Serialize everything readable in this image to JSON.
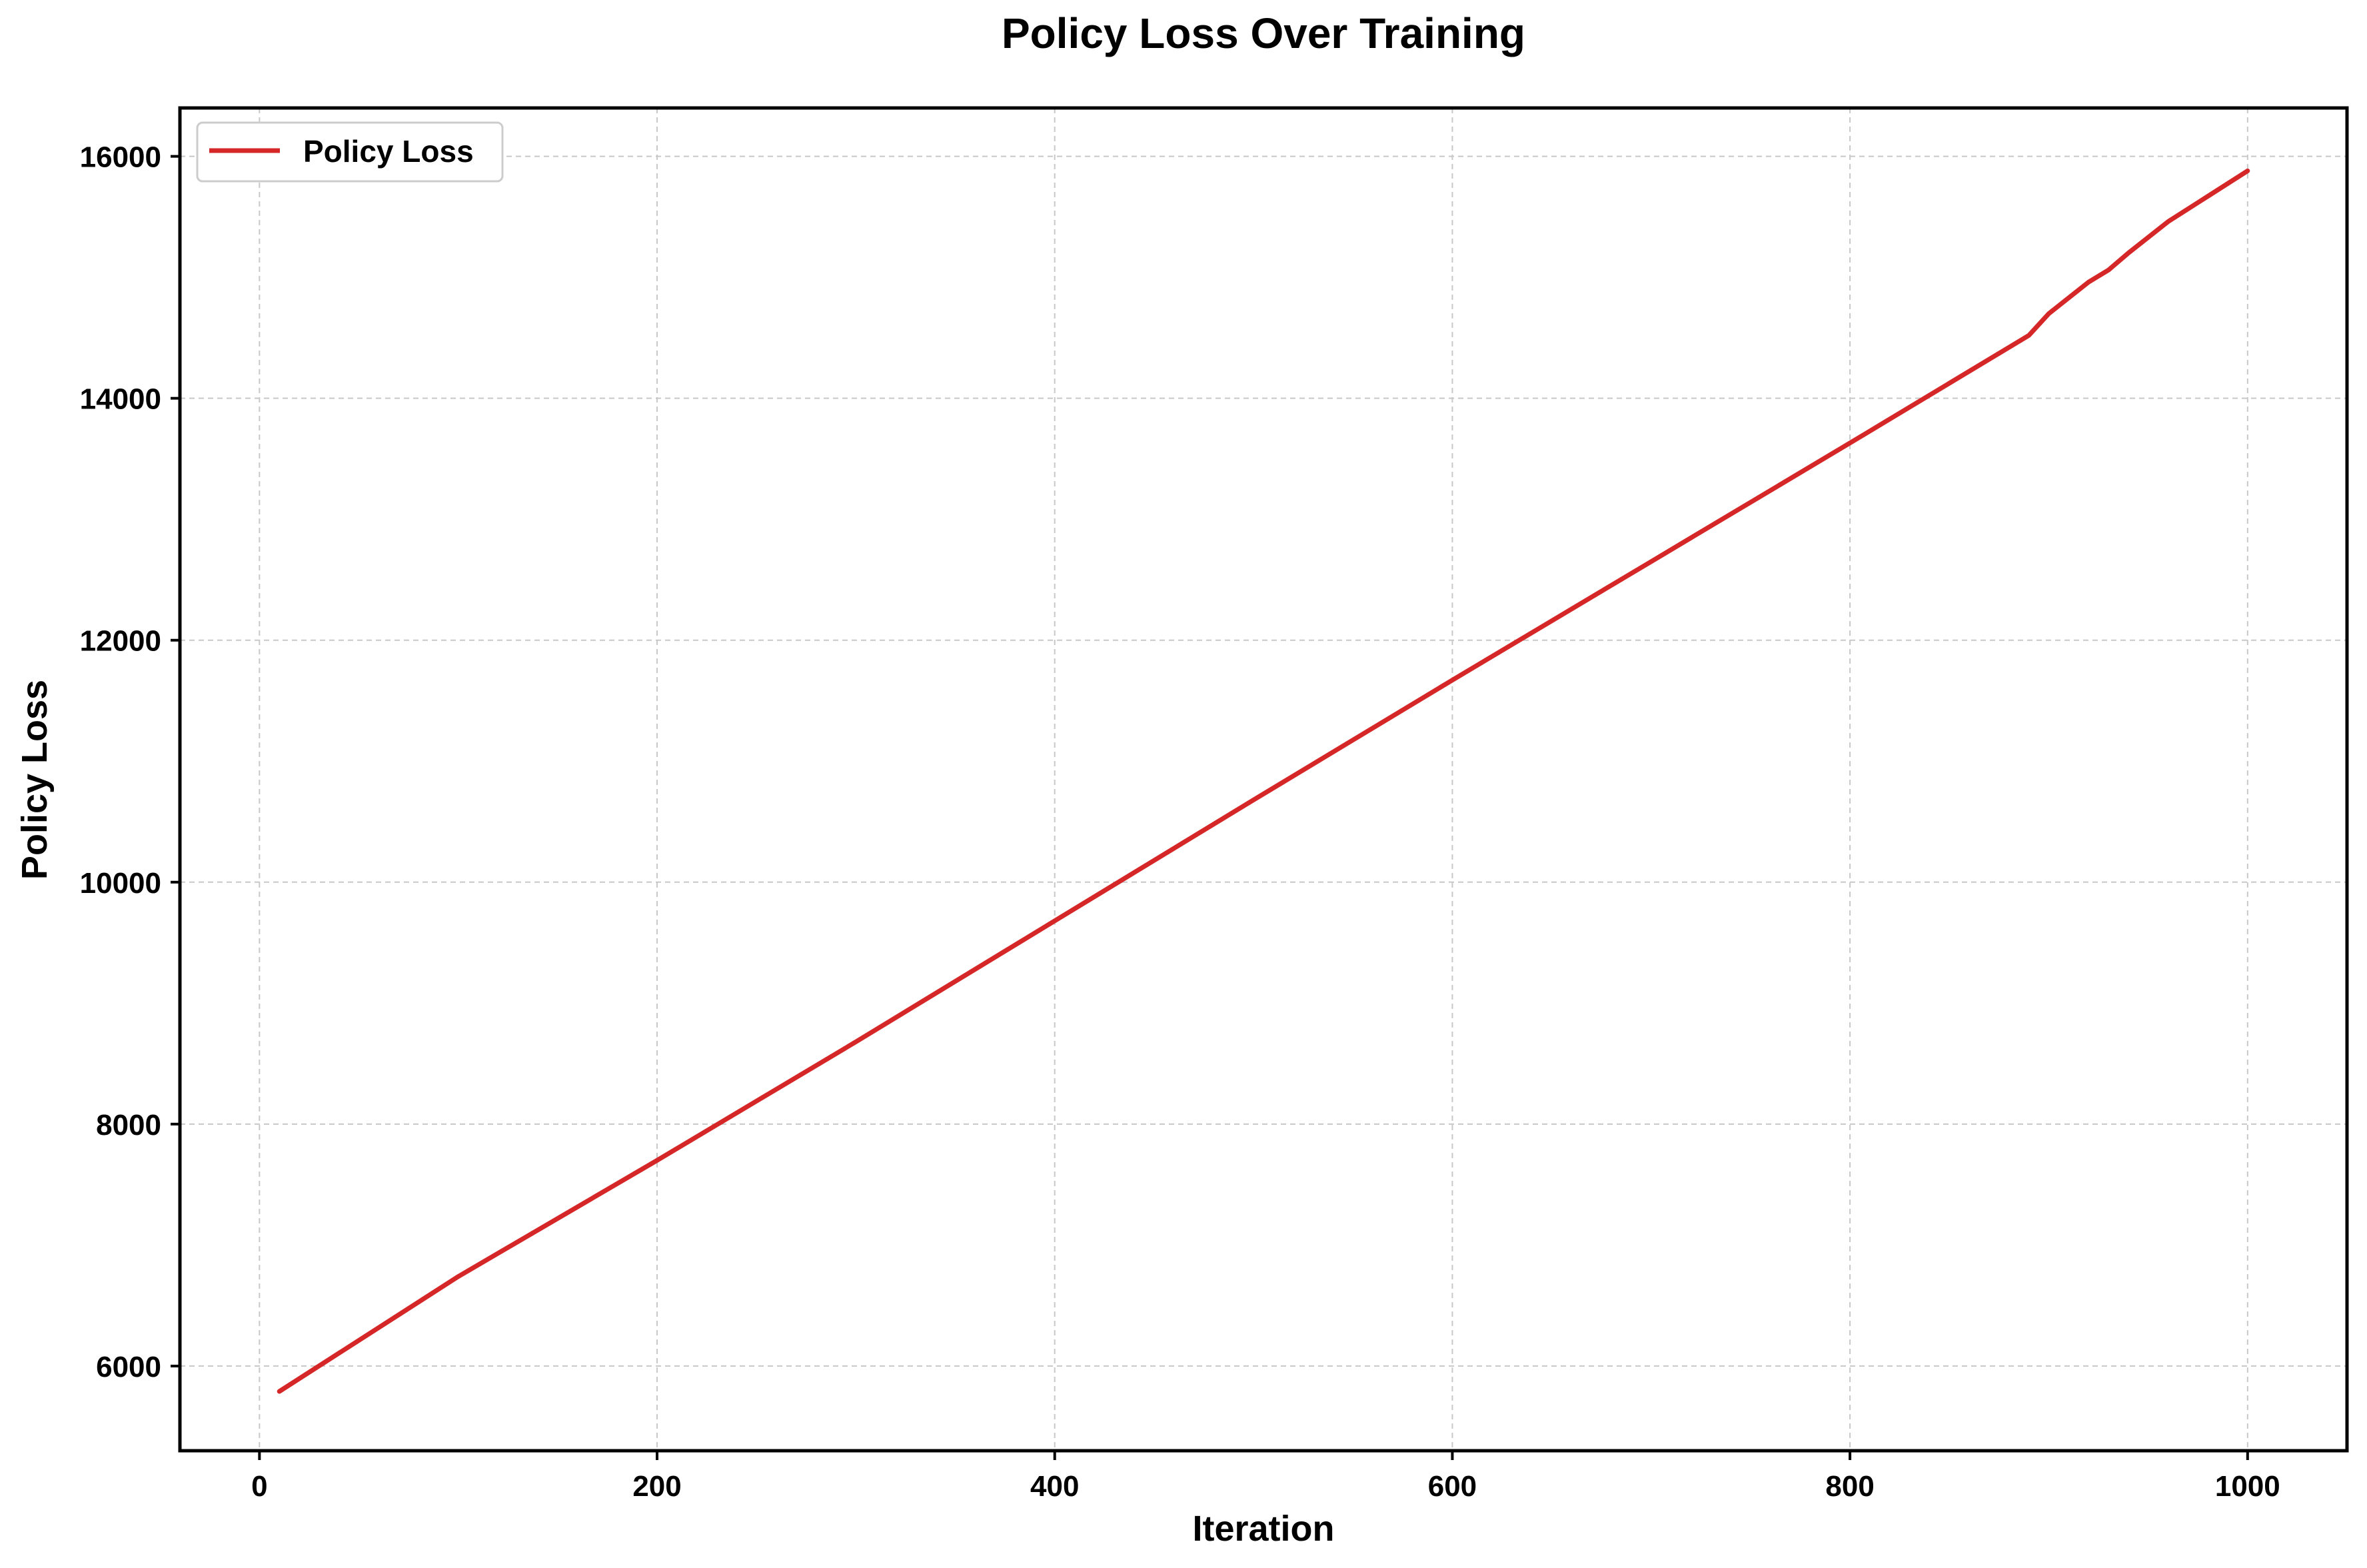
{
  "chart_data": {
    "type": "line",
    "title": "Policy Loss Over Training",
    "xlabel": "Iteration",
    "ylabel": "Policy Loss",
    "xlim": [
      -40,
      1050
    ],
    "ylim": [
      5300,
      16400
    ],
    "xticks": [
      0,
      200,
      400,
      600,
      800,
      1000
    ],
    "yticks": [
      6000,
      8000,
      10000,
      12000,
      14000,
      16000
    ],
    "grid": true,
    "legend_position": "upper-left",
    "series": [
      {
        "name": "Policy Loss",
        "color": "#d62728",
        "x": [
          10,
          100,
          200,
          300,
          400,
          465,
          500,
          600,
          700,
          800,
          890,
          900,
          920,
          930,
          940,
          960,
          980,
          1000
        ],
        "y": [
          5790,
          6740,
          7700,
          8680,
          9680,
          10330,
          10680,
          11670,
          12650,
          13630,
          14520,
          14700,
          14960,
          15060,
          15200,
          15460,
          15670,
          15880
        ]
      }
    ]
  }
}
